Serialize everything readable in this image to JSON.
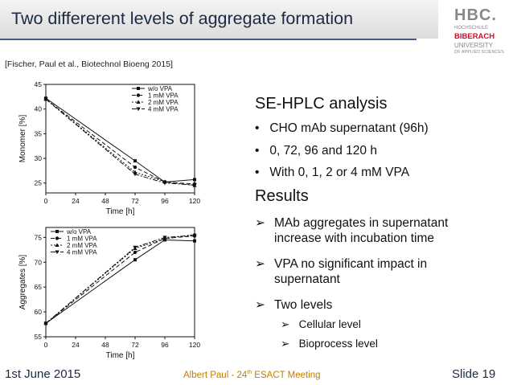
{
  "slide": {
    "title": "Two differerent levels of aggregate formation",
    "citation": "[Fischer, Paul et al., Biotechnol Bioeng 2015]",
    "logo": {
      "abbrev": "HBC.",
      "line1": "HOCHSCHULE",
      "line2": "BIBERACH",
      "line3": "UNIVERSITY",
      "line4": "OF APPLIED SCIENCES"
    }
  },
  "content": {
    "heading1": "SE-HPLC analysis",
    "bullets": [
      "CHO mAb supernatant (96h)",
      "0, 72, 96 and 120 h",
      "With 0, 1, 2 or 4 mM VPA"
    ],
    "heading2": "Results",
    "results": [
      "MAb aggregates in supernatant increase with incubation time",
      "VPA no significant impact in supernatant",
      "Two levels"
    ],
    "levels": [
      "Cellular level",
      "Bioprocess level"
    ],
    "bullet_symbol": "•",
    "arrow_symbol": "➢"
  },
  "footer": {
    "date": "1st June 2015",
    "center_prefix": "Albert Paul - 24",
    "center_sup": "th",
    "center_suffix": " ESACT Meeting",
    "slide": "Slide 19"
  },
  "chart_data": [
    {
      "type": "line",
      "xlabel": "Time [h]",
      "ylabel": "Monomer [%]",
      "x": [
        0,
        72,
        96,
        120
      ],
      "xticks": [
        0,
        24,
        48,
        72,
        96,
        120
      ],
      "yticks": [
        25,
        30,
        35,
        40,
        45
      ],
      "xlim": [
        0,
        120
      ],
      "ylim": [
        23,
        45
      ],
      "legend_position": "top-right",
      "series": [
        {
          "name": "w/o VPA",
          "values": [
            42.2,
            29.5,
            25.2,
            25.7
          ]
        },
        {
          "name": "1 mM VPA",
          "values": [
            42.0,
            28.2,
            25.2,
            24.8
          ]
        },
        {
          "name": "2 mM VPA",
          "values": [
            42.0,
            27.2,
            25.3,
            24.5
          ]
        },
        {
          "name": "4 mM VPA",
          "values": [
            42.0,
            26.8,
            25.0,
            24.6
          ]
        }
      ]
    },
    {
      "type": "line",
      "xlabel": "Time [h]",
      "ylabel": "Aggregates [%]",
      "x": [
        0,
        72,
        96,
        120
      ],
      "xticks": [
        0,
        24,
        48,
        72,
        96,
        120
      ],
      "yticks": [
        55,
        60,
        65,
        70,
        75
      ],
      "xlim": [
        0,
        120
      ],
      "ylim": [
        55,
        77
      ],
      "legend_position": "top-left",
      "series": [
        {
          "name": "w/o VPA",
          "values": [
            57.7,
            70.5,
            74.5,
            74.3
          ]
        },
        {
          "name": "1 mM VPA",
          "values": [
            57.7,
            72.0,
            74.8,
            75.3
          ]
        },
        {
          "name": "2 mM VPA",
          "values": [
            57.7,
            72.8,
            74.7,
            75.6
          ]
        },
        {
          "name": "4 mM VPA",
          "values": [
            57.7,
            73.0,
            75.0,
            75.4
          ]
        }
      ]
    }
  ]
}
